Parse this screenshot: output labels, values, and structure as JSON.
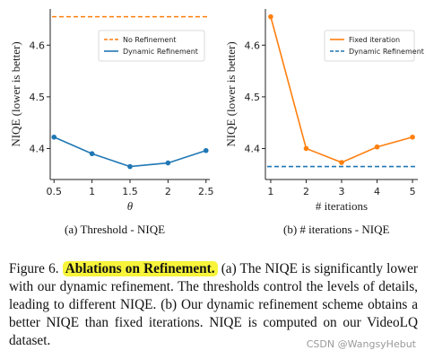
{
  "chart_data": [
    {
      "type": "line",
      "x": [
        0.5,
        1,
        1.5,
        2,
        2.5
      ],
      "xticks": [
        "0.5",
        "1",
        "1.5",
        "2",
        "2.5"
      ],
      "xlim": [
        0.45,
        2.55
      ],
      "ylim": [
        4.34,
        4.67
      ],
      "yticks": [
        "4.4",
        "4.5",
        "4.6"
      ],
      "xlabel": "θ",
      "ylabel": "NIQE (lower is better)",
      "legend_position": "top-right",
      "series": [
        {
          "name": "No Refinement",
          "style": "dashed",
          "color": "#ff7f0e",
          "values": [
            4.655,
            4.655,
            4.655,
            4.655,
            4.655
          ]
        },
        {
          "name": "Dynamic Refinement",
          "style": "solid",
          "color": "#1f77b4",
          "values": [
            4.422,
            4.39,
            4.365,
            4.372,
            4.396
          ]
        }
      ],
      "subcaption": "(a) Threshold - NIQE"
    },
    {
      "type": "line",
      "x": [
        1,
        2,
        3,
        4,
        5
      ],
      "xticks": [
        "1",
        "2",
        "3",
        "4",
        "5"
      ],
      "xlim": [
        0.85,
        5.15
      ],
      "ylim": [
        4.34,
        4.67
      ],
      "yticks": [
        "4.4",
        "4.5",
        "4.6"
      ],
      "xlabel": "# iterations",
      "ylabel": "NIQE (lower is better)",
      "legend_position": "top-right",
      "series": [
        {
          "name": "Fixed iteration",
          "style": "solid",
          "color": "#ff7f0e",
          "values": [
            4.655,
            4.4,
            4.373,
            4.403,
            4.422
          ]
        },
        {
          "name": "Dynamic Refinement",
          "style": "dashed",
          "color": "#1f77b4",
          "values": [
            4.365,
            4.365,
            4.365,
            4.365,
            4.365
          ]
        }
      ],
      "subcaption": "(b) # iterations - NIQE"
    }
  ],
  "caption": {
    "label": "Figure 6.",
    "highlight": "Ablations on Refinement.",
    "text": "(a) The NIQE is significantly lower with our dynamic refinement. The thresholds control the levels of details, leading to different NIQE. (b) Our dynamic refinement scheme obtains a better NIQE than fixed iterations. NIQE is computed on our VideoLQ dataset."
  },
  "watermark": "CSDN @WangsyHebut"
}
